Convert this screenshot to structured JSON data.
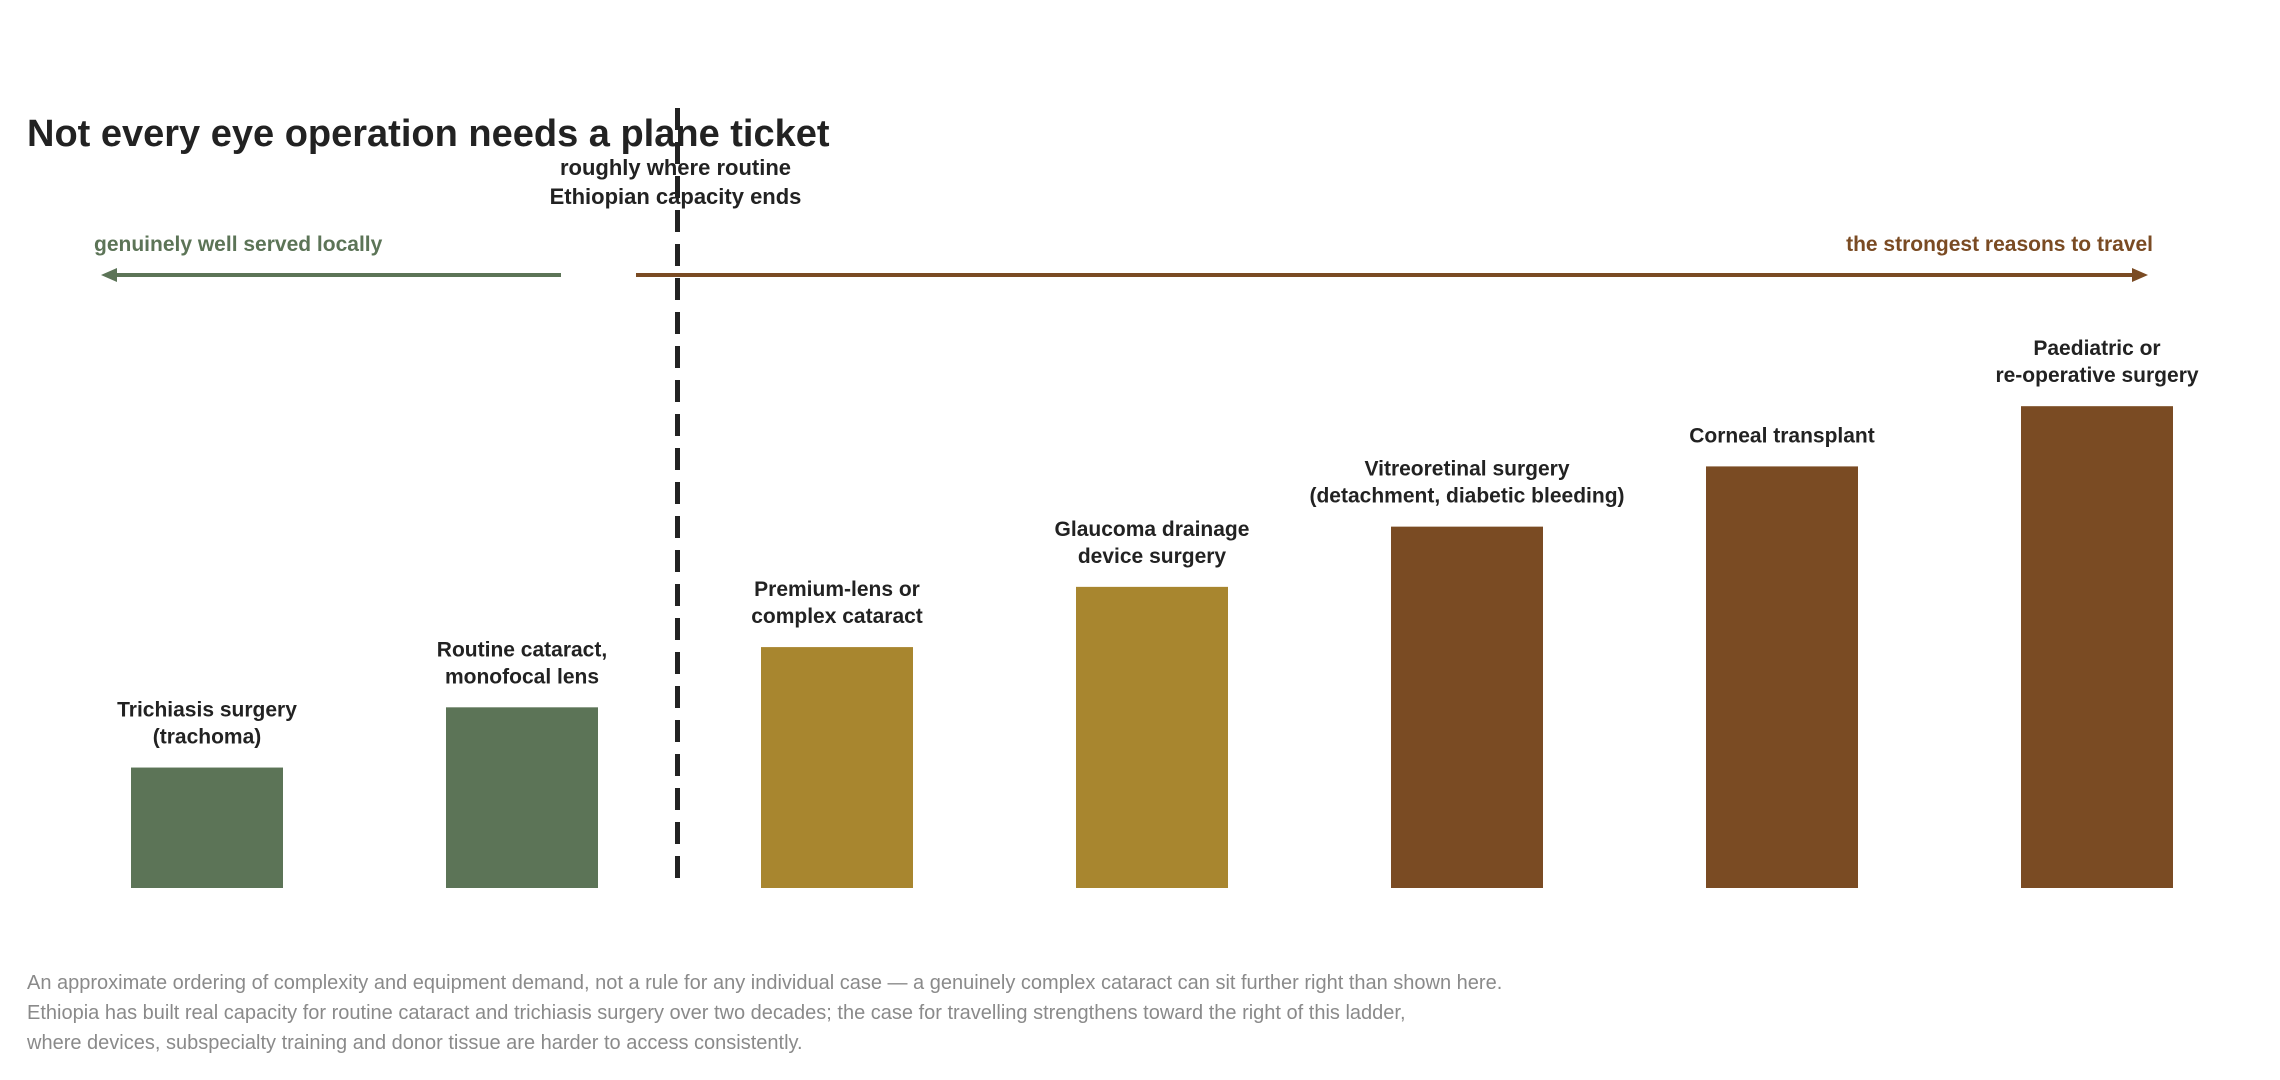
{
  "chart_data": {
    "type": "bar",
    "title": "Not every eye operation needs a plane ticket",
    "categories": [
      [
        "Trichiasis surgery",
        "(trachoma)"
      ],
      [
        "Routine cataract,",
        "monofocal lens"
      ],
      [
        "Premium-lens or",
        "complex cataract"
      ],
      [
        "Glaucoma drainage",
        "device surgery"
      ],
      [
        "Vitreoretinal surgery",
        "(detachment, diabetic bleeding)"
      ],
      [
        "Corneal transplant"
      ],
      [
        "Paediatric or",
        "re-operative surgery"
      ]
    ],
    "values": [
      2,
      3,
      4,
      5,
      6,
      7,
      8
    ],
    "ylim": [
      0,
      8.8
    ],
    "colors": [
      "#5c7457",
      "#5c7457",
      "#a8862f",
      "#a8862f",
      "#7a4b23",
      "#7a4b23",
      "#7a4b23"
    ],
    "divider": {
      "position": 1.5,
      "label": [
        "roughly where routine",
        "Ethiopian capacity ends"
      ]
    },
    "left_arrow": {
      "label": "genuinely well served locally",
      "color": "#5c7457"
    },
    "right_arrow": {
      "label": "the strongest reasons to travel",
      "color": "#7a4b23"
    },
    "notes": [
      "An approximate ordering of complexity and equipment demand, not a rule for any individual case — a genuinely complex cataract can sit further right than shown here.",
      "Ethiopia has built real capacity for routine cataract and trichiasis surgery over two decades; the case for travelling strengthens toward the right of this ladder,",
      "where devices, subspecialty training and donor tissue are harder to access consistently."
    ]
  }
}
